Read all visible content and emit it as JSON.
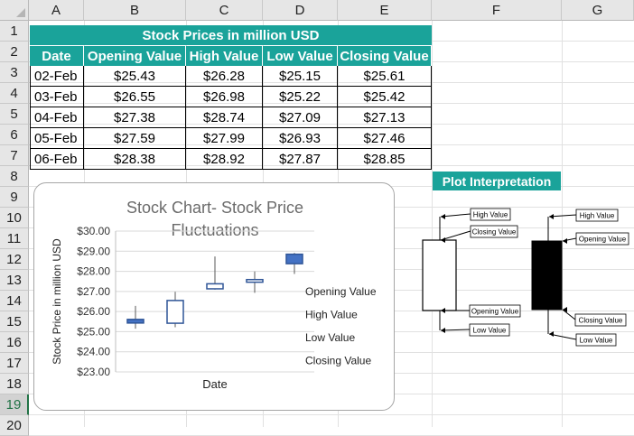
{
  "columns": [
    "A",
    "B",
    "C",
    "D",
    "E",
    "F",
    "G"
  ],
  "rows": [
    "1",
    "2",
    "3",
    "4",
    "5",
    "6",
    "7",
    "8",
    "9",
    "10",
    "11",
    "12",
    "13",
    "14",
    "15",
    "16",
    "17",
    "18",
    "19",
    "20"
  ],
  "selected_row": "19",
  "table": {
    "title": "Stock Prices in million USD",
    "headers": [
      "Date",
      "Opening Value",
      "High Value",
      "Low Value",
      "Closing Value"
    ],
    "rows": [
      [
        "02-Feb",
        "$25.43",
        "$26.28",
        "$25.15",
        "$25.61"
      ],
      [
        "03-Feb",
        "$26.55",
        "$26.98",
        "$25.22",
        "$25.42"
      ],
      [
        "04-Feb",
        "$27.38",
        "$28.74",
        "$27.09",
        "$27.13"
      ],
      [
        "05-Feb",
        "$27.59",
        "$27.99",
        "$26.93",
        "$27.46"
      ],
      [
        "06-Feb",
        "$28.38",
        "$28.92",
        "$27.87",
        "$28.85"
      ]
    ]
  },
  "chart_data": {
    "type": "candlestick",
    "title_line1": "Stock Chart- Stock Price",
    "title_line2": "Fluctuations",
    "xlabel": "Date",
    "ylabel": "Stock Price in million USD",
    "ylim": [
      23,
      30
    ],
    "yticks": [
      "$30.00",
      "$29.00",
      "$28.00",
      "$27.00",
      "$26.00",
      "$25.00",
      "$24.00",
      "$23.00"
    ],
    "grid": true,
    "legend": [
      "Opening Value",
      "High Value",
      "Low Value",
      "Closing Value"
    ],
    "colors": {
      "up": "#4472c4",
      "down": "#ffffff",
      "outline": "#2f5597",
      "wick": "#595959"
    },
    "candles": [
      {
        "open": 25.43,
        "high": 26.28,
        "low": 25.15,
        "close": 25.61
      },
      {
        "open": 26.55,
        "high": 26.98,
        "low": 25.22,
        "close": 25.42
      },
      {
        "open": 27.38,
        "high": 28.74,
        "low": 27.09,
        "close": 27.13
      },
      {
        "open": 27.59,
        "high": 27.99,
        "low": 26.93,
        "close": 27.46
      },
      {
        "open": 28.38,
        "high": 28.92,
        "low": 27.87,
        "close": 28.85
      }
    ]
  },
  "interpretation": {
    "title": "Plot Interpretation",
    "white_candle": [
      "High Value",
      "Closing Value",
      "Opening Value",
      "Low Value"
    ],
    "black_candle": [
      "High Value",
      "Opening Value",
      "Closing Value",
      "Low Value"
    ]
  }
}
